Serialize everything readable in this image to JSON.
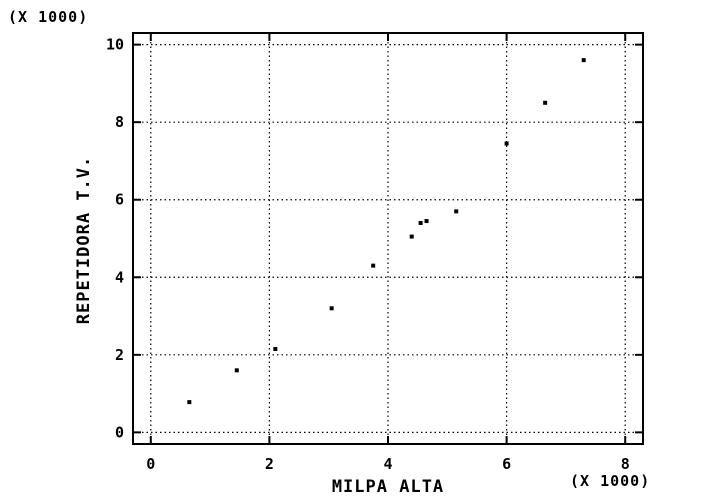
{
  "chart_data": {
    "type": "scatter",
    "title": "",
    "xlabel": "MILPA ALTA",
    "ylabel": "REPETIDORA T.V.",
    "x_multiplier_label": "(X 1000)",
    "y_multiplier_label": "(X 1000)",
    "xlim": [
      -0.3,
      8.3
    ],
    "ylim": [
      -0.3,
      10.3
    ],
    "x_ticks": [
      "0",
      "2",
      "4",
      "6",
      "8"
    ],
    "y_ticks": [
      "0",
      "2",
      "4",
      "6",
      "8",
      "10"
    ],
    "grid": true,
    "series": [
      {
        "points": [
          {
            "x": 0.65,
            "y": 0.78
          },
          {
            "x": 1.45,
            "y": 1.6
          },
          {
            "x": 2.1,
            "y": 2.15
          },
          {
            "x": 3.05,
            "y": 3.2
          },
          {
            "x": 3.75,
            "y": 4.3
          },
          {
            "x": 4.4,
            "y": 5.05
          },
          {
            "x": 4.55,
            "y": 5.4
          },
          {
            "x": 4.65,
            "y": 5.45
          },
          {
            "x": 5.15,
            "y": 5.7
          },
          {
            "x": 6.0,
            "y": 7.45
          },
          {
            "x": 6.65,
            "y": 8.5
          },
          {
            "x": 7.3,
            "y": 9.6
          }
        ]
      }
    ]
  }
}
